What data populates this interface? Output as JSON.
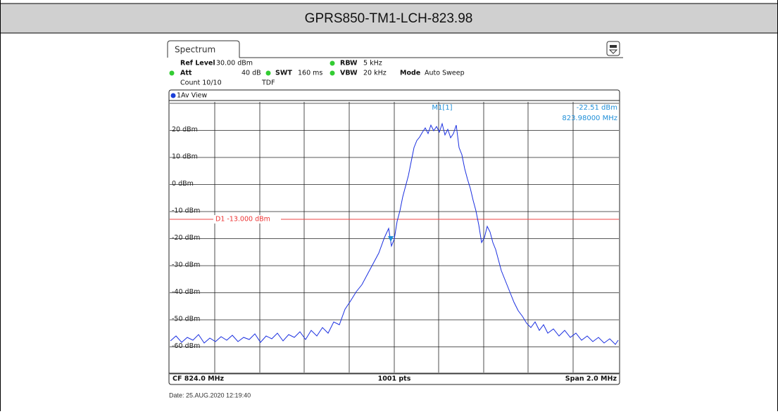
{
  "header": {
    "title": "GPRS850-TM1-LCH-823.98"
  },
  "spectrum": {
    "tab": "Spectrum",
    "ref_level_label": "Ref Level",
    "ref_level": "30.00 dBm",
    "rbw_label": "RBW",
    "rbw": "5 kHz",
    "att_label": "Att",
    "att": "40 dB",
    "swt_label": "SWT",
    "swt": "160 ms",
    "vbw_label": "VBW",
    "vbw": "20 kHz",
    "mode_label": "Mode",
    "mode": "Auto Sweep",
    "count": "Count 10/10",
    "tdf": "TDF",
    "view": "1Av View",
    "marker_name": "M1[1]",
    "marker_level": "-22.51 dBm",
    "marker_freq": "823.98000 MHz",
    "y_labels": [
      "20 dBm",
      "10 dBm",
      "0 dBm",
      "-10 dBm",
      "-20 dBm",
      "-30 dBm",
      "-40 dBm",
      "-50 dBm",
      "-60 dBm"
    ],
    "display_line": "D1 -13.000 dBm",
    "center": "CF 824.0 MHz",
    "points": "1001 pts",
    "span": "Span 2.0 MHz"
  },
  "footer": {
    "date": "Date: 25.AUG.2020 12:19:40"
  }
}
